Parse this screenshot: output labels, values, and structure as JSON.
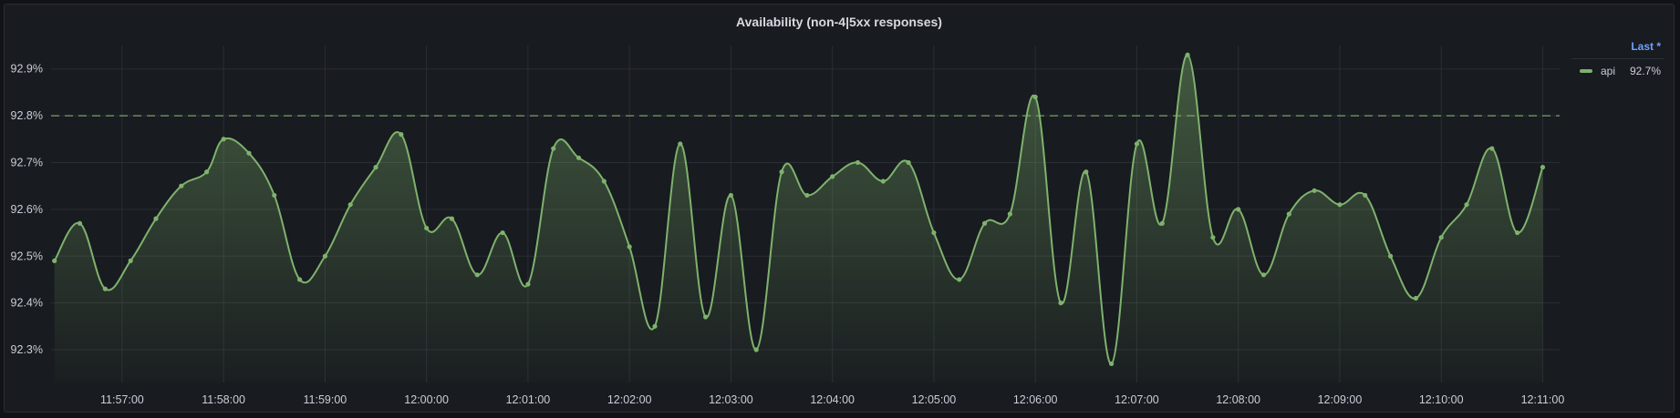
{
  "panel": {
    "title": "Availability (non-4|5xx responses)"
  },
  "legend": {
    "header": "Last *",
    "items": [
      {
        "name": "api",
        "value": "92.7%",
        "color": "#7eb26d"
      }
    ]
  },
  "chart_data": {
    "type": "area",
    "title": "Availability (non-4|5xx responses)",
    "xlabel": "",
    "ylabel": "",
    "grid": true,
    "legend_position": "right",
    "x_ticks": [
      "11:57:00",
      "11:58:00",
      "11:59:00",
      "12:00:00",
      "12:01:00",
      "12:02:00",
      "12:03:00",
      "12:04:00",
      "12:05:00",
      "12:06:00",
      "12:07:00",
      "12:08:00",
      "12:09:00",
      "12:10:00",
      "12:11:00"
    ],
    "y_ticks": [
      92.3,
      92.4,
      92.5,
      92.6,
      92.7,
      92.8,
      92.9
    ],
    "y_tick_labels": [
      "92.3%",
      "92.4%",
      "92.5%",
      "92.6%",
      "92.7%",
      "92.8%",
      "92.9%"
    ],
    "xlim": [
      "11:56:18",
      "12:11:10"
    ],
    "ylim": [
      92.23,
      92.95
    ],
    "threshold": {
      "value": 92.8,
      "style": "dashed",
      "color": "#7eb26d"
    },
    "series": [
      {
        "name": "api",
        "color": "#7eb26d",
        "x": [
          "11:56:20",
          "11:56:35",
          "11:56:50",
          "11:57:05",
          "11:57:20",
          "11:57:35",
          "11:57:50",
          "11:58:00",
          "11:58:15",
          "11:58:30",
          "11:58:45",
          "11:59:00",
          "11:59:15",
          "11:59:30",
          "11:59:45",
          "12:00:00",
          "12:00:15",
          "12:00:30",
          "12:00:45",
          "12:01:00",
          "12:01:15",
          "12:01:30",
          "12:01:45",
          "12:02:00",
          "12:02:15",
          "12:02:30",
          "12:02:45",
          "12:03:00",
          "12:03:15",
          "12:03:30",
          "12:03:45",
          "12:04:00",
          "12:04:15",
          "12:04:30",
          "12:04:45",
          "12:05:00",
          "12:05:15",
          "12:05:30",
          "12:05:45",
          "12:06:00",
          "12:06:15",
          "12:06:30",
          "12:06:45",
          "12:07:00",
          "12:07:15",
          "12:07:30",
          "12:07:45",
          "12:08:00",
          "12:08:15",
          "12:08:30",
          "12:08:45",
          "12:09:00",
          "12:09:15",
          "12:09:30",
          "12:09:45",
          "12:10:00",
          "12:10:15",
          "12:10:30",
          "12:10:45",
          "12:11:00"
        ],
        "values": [
          92.49,
          92.57,
          92.43,
          92.49,
          92.58,
          92.65,
          92.68,
          92.75,
          92.72,
          92.63,
          92.45,
          92.5,
          92.61,
          92.69,
          92.76,
          92.56,
          92.58,
          92.46,
          92.55,
          92.44,
          92.73,
          92.71,
          92.66,
          92.52,
          92.35,
          92.74,
          92.37,
          92.63,
          92.3,
          92.68,
          92.63,
          92.67,
          92.7,
          92.66,
          92.7,
          92.55,
          92.45,
          92.57,
          92.59,
          92.84,
          92.4,
          92.68,
          92.27,
          92.74,
          92.57,
          92.93,
          92.54,
          92.6,
          92.46,
          92.59,
          92.64,
          92.61,
          92.63,
          92.5,
          92.41,
          92.54,
          92.61,
          92.73,
          92.55,
          92.69
        ]
      }
    ]
  }
}
